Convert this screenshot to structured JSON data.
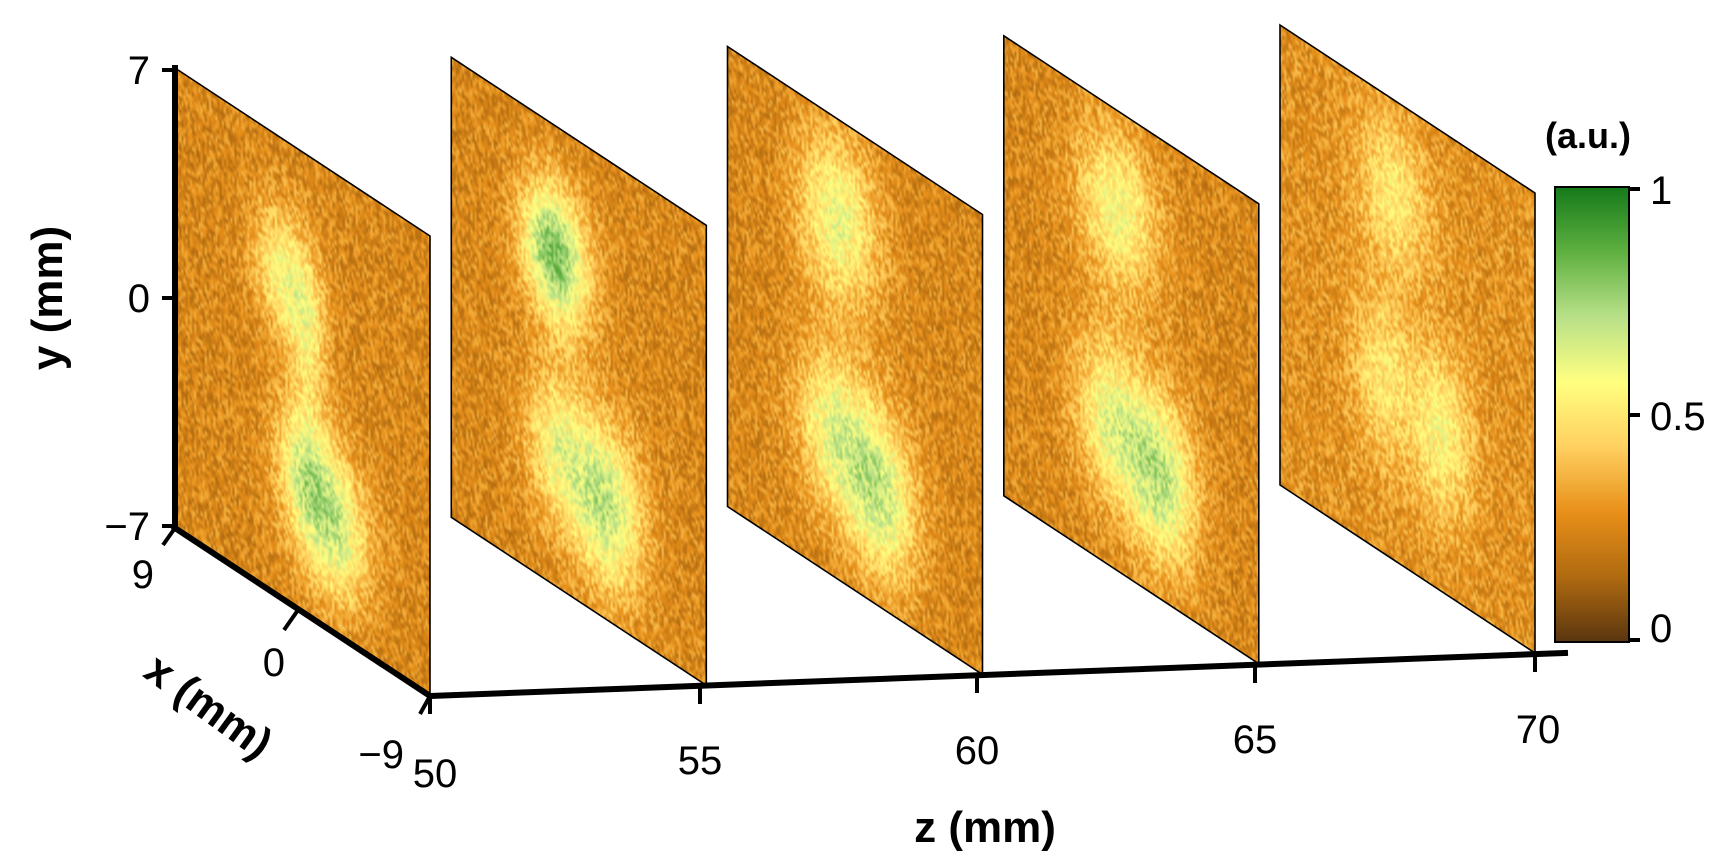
{
  "chart_data": {
    "type": "heatmap",
    "title": "",
    "axes": {
      "x": {
        "label": "x (mm)",
        "range": [
          -9,
          9
        ],
        "ticks": [
          "9",
          "0",
          "−9"
        ]
      },
      "y": {
        "label": "y (mm)",
        "range": [
          -7,
          7
        ],
        "ticks": [
          "7",
          "0",
          "−7"
        ]
      },
      "z": {
        "label": "z (mm)",
        "range": [
          50,
          70
        ],
        "ticks": [
          "50",
          "55",
          "60",
          "65",
          "70"
        ]
      }
    },
    "slices_z": [
      50,
      55,
      60,
      65,
      70
    ],
    "colorbar": {
      "title": "(a.u.)",
      "range": [
        0,
        1
      ],
      "ticks": [
        "1",
        "0.5",
        "0"
      ],
      "colors": [
        "#5a3510",
        "#b06a10",
        "#e8901a",
        "#ffd060",
        "#ffff80",
        "#b8e088",
        "#5fb040",
        "#157a1a"
      ]
    },
    "slices": [
      {
        "z": 50,
        "background_level": 0.25,
        "spots": [
          {
            "x": -1.5,
            "y": 3.0,
            "sx": 1.4,
            "sy": 1.3,
            "level": 0.55
          },
          {
            "x": 0.4,
            "y": 1.5,
            "sx": 1.0,
            "sy": 1.6,
            "level": 0.5
          },
          {
            "x": 0.0,
            "y": -2.6,
            "sx": 1.4,
            "sy": 1.4,
            "level": 0.55
          },
          {
            "x": 2.2,
            "y": -3.8,
            "sx": 1.8,
            "sy": 1.6,
            "level": 0.65
          }
        ]
      },
      {
        "z": 55,
        "background_level": 0.25,
        "spots": [
          {
            "x": -2.5,
            "y": 3.2,
            "sx": 1.4,
            "sy": 1.4,
            "level": 0.55
          },
          {
            "x": -1.0,
            "y": 3.0,
            "sx": 1.5,
            "sy": 1.5,
            "level": 0.6
          },
          {
            "x": -1.5,
            "y": -2.8,
            "sx": 1.6,
            "sy": 1.6,
            "level": 0.55
          },
          {
            "x": 2.0,
            "y": -3.6,
            "sx": 1.8,
            "sy": 1.8,
            "level": 0.68
          }
        ]
      },
      {
        "z": 60,
        "background_level": 0.25,
        "spots": [
          {
            "x": -1.2,
            "y": 4.0,
            "sx": 2.0,
            "sy": 1.8,
            "level": 0.6
          },
          {
            "x": -1.6,
            "y": -2.6,
            "sx": 1.8,
            "sy": 1.7,
            "level": 0.58
          },
          {
            "x": 1.8,
            "y": -3.6,
            "sx": 1.8,
            "sy": 1.8,
            "level": 0.66
          }
        ]
      },
      {
        "z": 65,
        "background_level": 0.25,
        "spots": [
          {
            "x": -1.0,
            "y": 4.0,
            "sx": 2.0,
            "sy": 1.7,
            "level": 0.58
          },
          {
            "x": -1.4,
            "y": -2.6,
            "sx": 1.8,
            "sy": 1.7,
            "level": 0.6
          },
          {
            "x": 2.2,
            "y": -3.4,
            "sx": 1.7,
            "sy": 1.8,
            "level": 0.68
          }
        ]
      },
      {
        "z": 70,
        "background_level": 0.28,
        "spots": [
          {
            "x": -1.0,
            "y": 4.2,
            "sx": 1.8,
            "sy": 1.6,
            "level": 0.52
          },
          {
            "x": -1.8,
            "y": -1.6,
            "sx": 1.5,
            "sy": 1.8,
            "level": 0.5
          },
          {
            "x": 2.4,
            "y": -2.2,
            "sx": 1.6,
            "sy": 1.8,
            "level": 0.55
          }
        ]
      }
    ]
  }
}
